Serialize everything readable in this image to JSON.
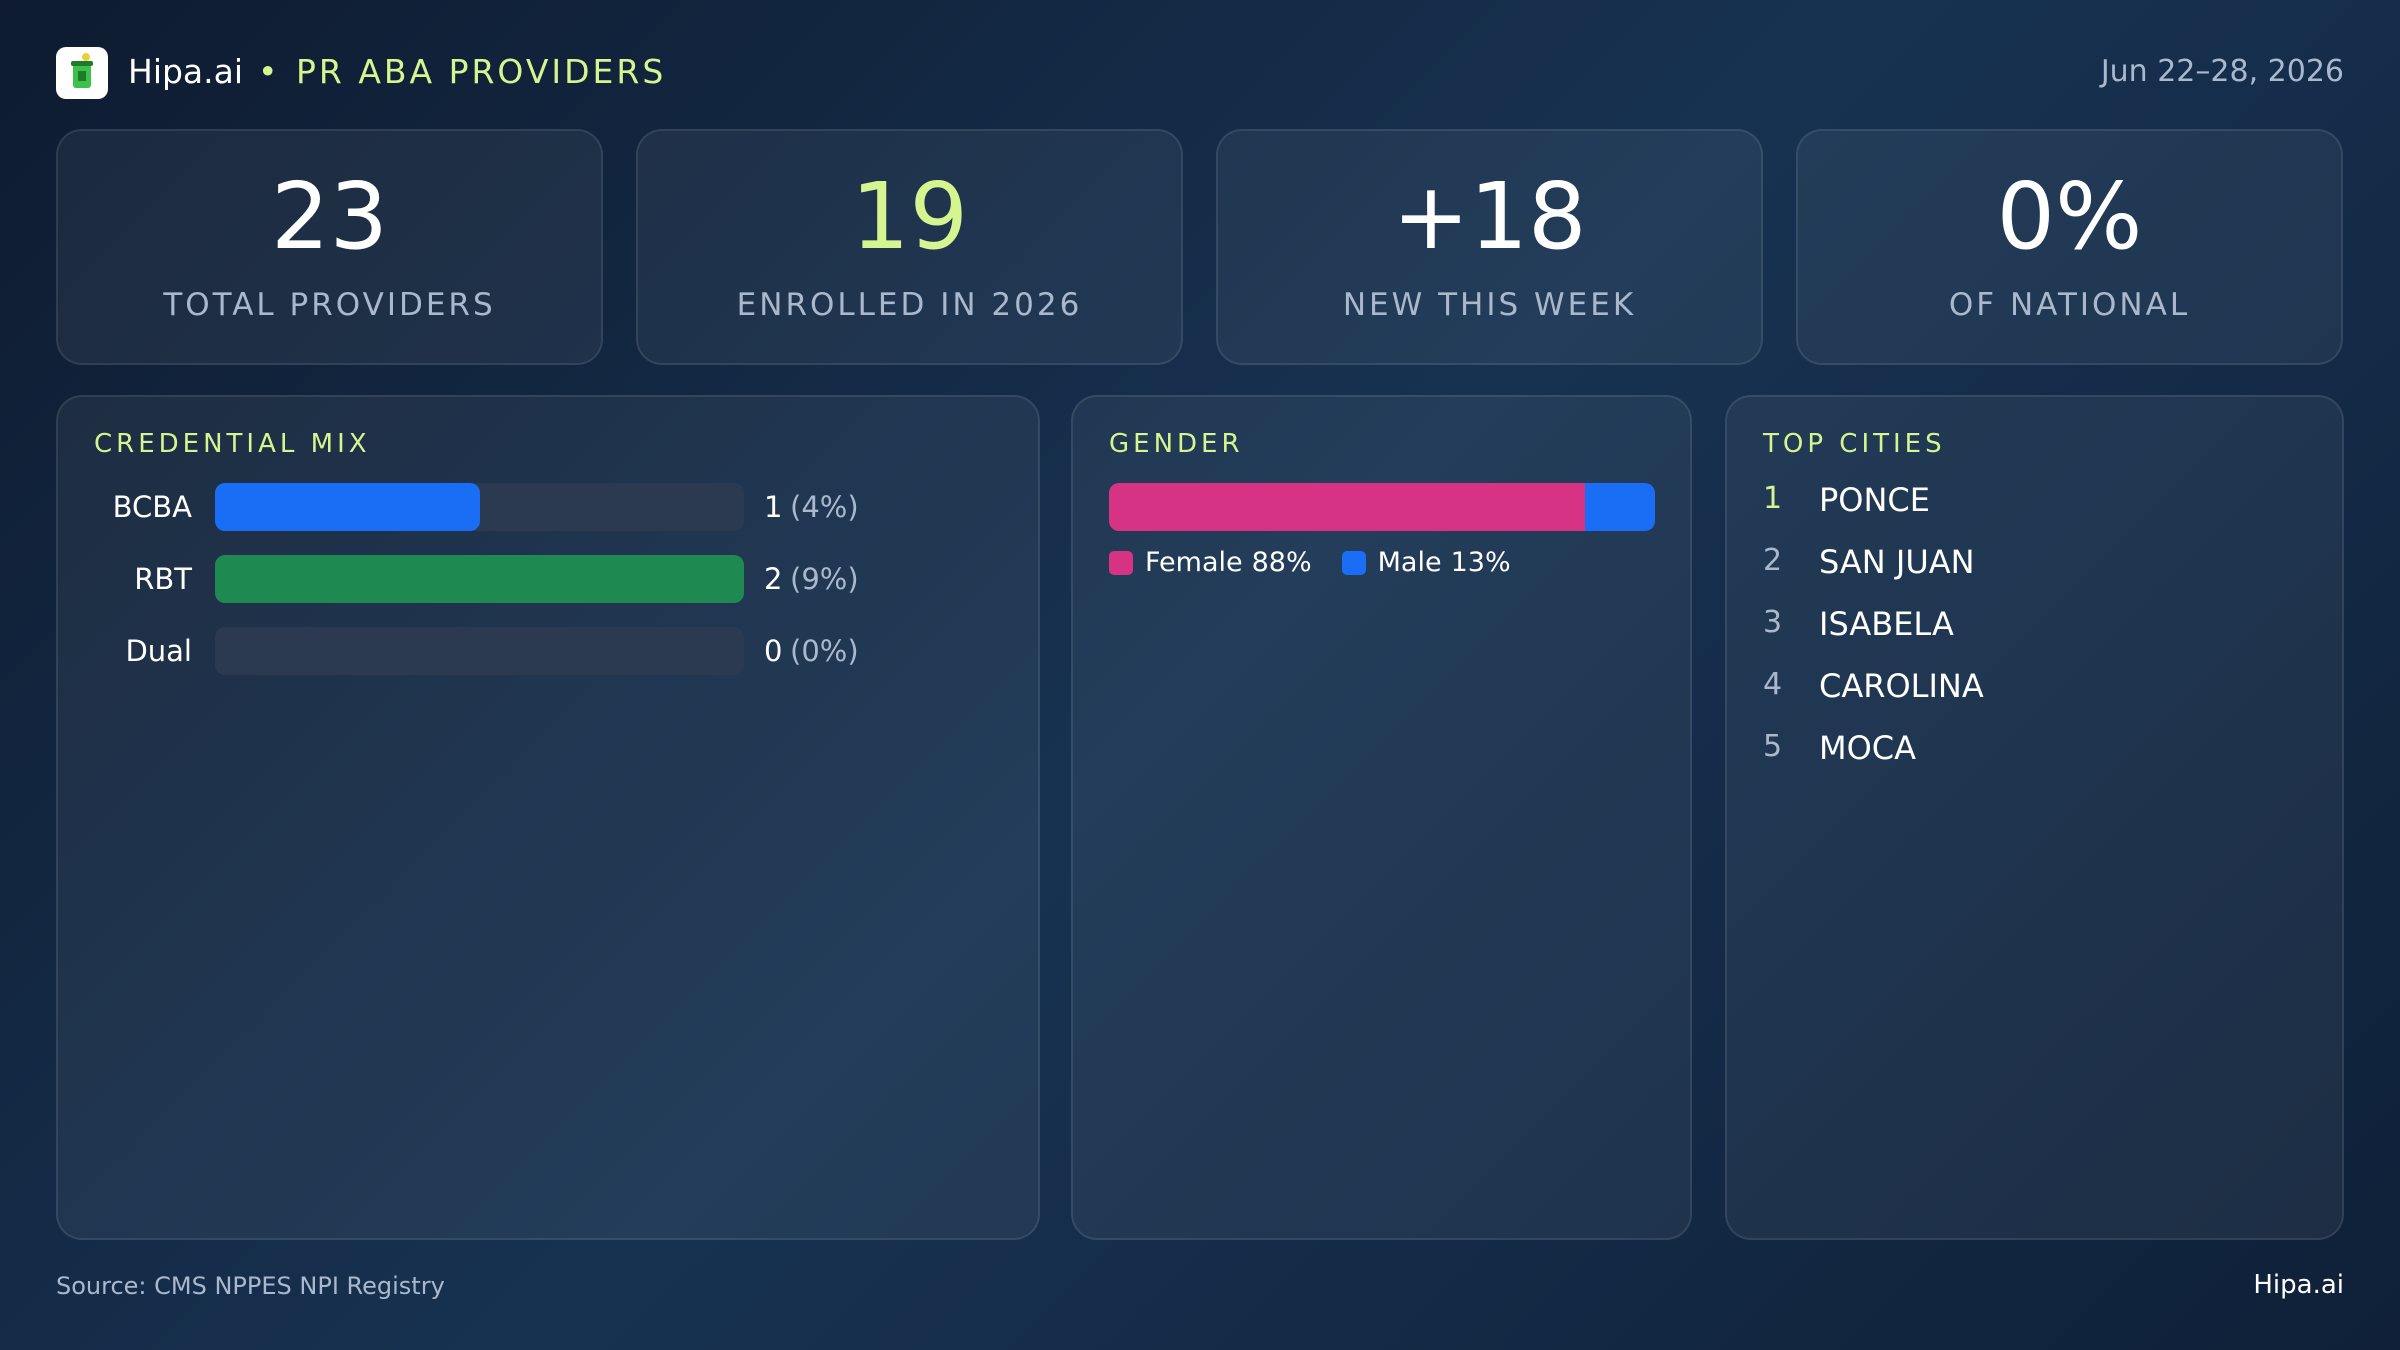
{
  "header": {
    "brand": "Hipa.ai",
    "title": "PR ABA PROVIDERS",
    "date": "Jun 22–28, 2026"
  },
  "kpis": [
    {
      "value": "23",
      "label": "TOTAL PROVIDERS",
      "accent": false
    },
    {
      "value": "19",
      "label": "ENROLLED IN 2026",
      "accent": true
    },
    {
      "value": "+18",
      "label": "NEW THIS WEEK",
      "accent": false
    },
    {
      "value": "0%",
      "label": "OF NATIONAL",
      "accent": false
    }
  ],
  "credential_mix": {
    "type": "bar",
    "title": "CREDENTIAL MIX",
    "categories": [
      "BCBA",
      "RBT",
      "Dual"
    ],
    "values": [
      1,
      2,
      0
    ],
    "percent_labels": [
      "(4%)",
      "(9%)",
      "(0%)"
    ],
    "colors": [
      "#1a6ef5",
      "#1e8a52",
      null
    ]
  },
  "gender": {
    "type": "stacked-bar",
    "title": "GENDER",
    "series": [
      {
        "name": "Female",
        "color": "#d63384",
        "value": 88,
        "value_label": "88%"
      },
      {
        "name": "Male",
        "color": "#1a6ef5",
        "value": 13,
        "value_label": "13%"
      }
    ]
  },
  "top_cities": {
    "title": "TOP CITIES",
    "items": [
      {
        "rank": 1,
        "name": "PONCE"
      },
      {
        "rank": 2,
        "name": "SAN JUAN"
      },
      {
        "rank": 3,
        "name": "ISABELA"
      },
      {
        "rank": 4,
        "name": "CAROLINA"
      },
      {
        "rank": 5,
        "name": "MOCA"
      }
    ]
  },
  "footer": {
    "source": "Source: CMS NPPES NPI Registry",
    "brand": "Hipa.ai"
  }
}
